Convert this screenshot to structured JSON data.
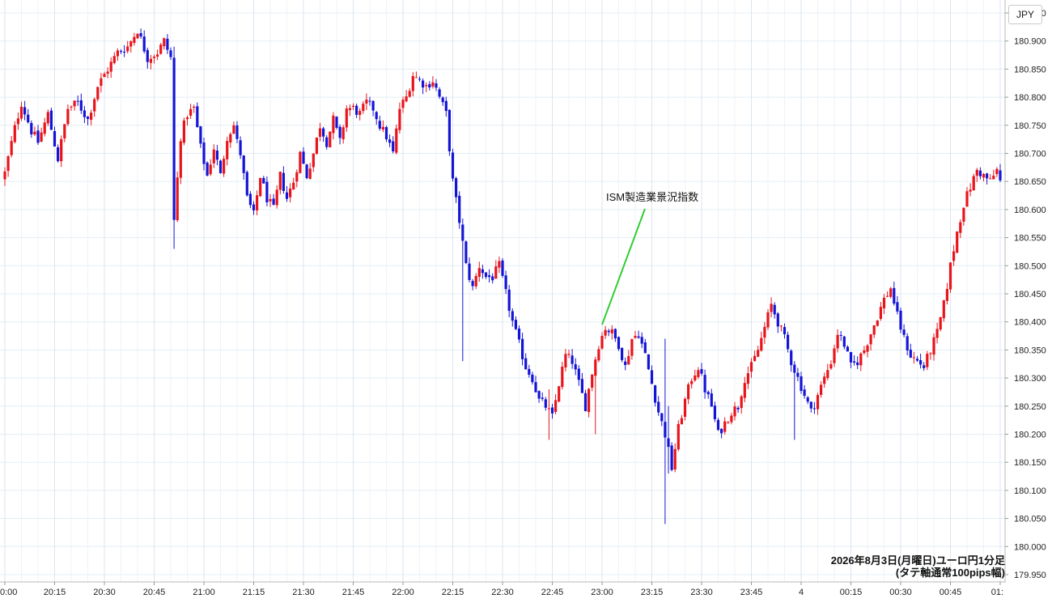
{
  "header": {
    "currency": "JPY"
  },
  "caption": {
    "line1": "2026年8月3日(月曜日)ユーロ円1分足",
    "line2": "(タテ軸通常100pips幅)"
  },
  "annotation": {
    "text": "ISM製造業景況指数",
    "time": "23:00",
    "price": 180.395
  },
  "chart_data": {
    "type": "candlestick",
    "interval": "1分足",
    "ylim": [
      179.95,
      180.95
    ],
    "y_ticks": [
      "180.950",
      "180.900",
      "180.850",
      "180.800",
      "180.750",
      "180.700",
      "180.650",
      "180.600",
      "180.550",
      "180.500",
      "180.450",
      "180.400",
      "180.350",
      "180.300",
      "180.250",
      "180.200",
      "180.150",
      "180.100",
      "180.050",
      "180.000",
      "179.950"
    ],
    "x_ticks": [
      {
        "t": 0,
        "label": "0:00"
      },
      {
        "t": 15,
        "label": "20:15"
      },
      {
        "t": 30,
        "label": "20:30"
      },
      {
        "t": 45,
        "label": "20:45"
      },
      {
        "t": 60,
        "label": "21:00"
      },
      {
        "t": 75,
        "label": "21:15"
      },
      {
        "t": 90,
        "label": "21:30"
      },
      {
        "t": 105,
        "label": "21:45"
      },
      {
        "t": 120,
        "label": "22:00"
      },
      {
        "t": 135,
        "label": "22:15"
      },
      {
        "t": 150,
        "label": "22:30"
      },
      {
        "t": 165,
        "label": "22:45"
      },
      {
        "t": 180,
        "label": "23:00"
      },
      {
        "t": 195,
        "label": "23:15"
      },
      {
        "t": 210,
        "label": "23:30"
      },
      {
        "t": 225,
        "label": "23:45"
      },
      {
        "t": 240,
        "label": "4"
      },
      {
        "t": 255,
        "label": "00:15"
      },
      {
        "t": 270,
        "label": "00:30"
      },
      {
        "t": 285,
        "label": "00:45"
      },
      {
        "t": 300,
        "label": "01:"
      }
    ],
    "colors": {
      "up": "#e8141c",
      "down": "#1414d6",
      "annotation_line": "#33cc33"
    },
    "close_path": [
      [
        0,
        180.665
      ],
      [
        3,
        180.745
      ],
      [
        5,
        180.79
      ],
      [
        8,
        180.74
      ],
      [
        10,
        180.72
      ],
      [
        13,
        180.77
      ],
      [
        16,
        180.69
      ],
      [
        19,
        180.78
      ],
      [
        22,
        180.79
      ],
      [
        25,
        180.76
      ],
      [
        28,
        180.82
      ],
      [
        31,
        180.85
      ],
      [
        34,
        180.88
      ],
      [
        37,
        180.89
      ],
      [
        40,
        180.92
      ],
      [
        43,
        180.87
      ],
      [
        46,
        180.88
      ],
      [
        48,
        180.9
      ],
      [
        50,
        180.87
      ],
      [
        51,
        180.58
      ],
      [
        53,
        180.73
      ],
      [
        55,
        180.77
      ],
      [
        57,
        180.78
      ],
      [
        59,
        180.71
      ],
      [
        61,
        180.66
      ],
      [
        63,
        180.71
      ],
      [
        65,
        180.66
      ],
      [
        67,
        180.73
      ],
      [
        69,
        180.75
      ],
      [
        70,
        180.72
      ],
      [
        71,
        180.7
      ],
      [
        73,
        180.62
      ],
      [
        75,
        180.59
      ],
      [
        77,
        180.66
      ],
      [
        79,
        180.62
      ],
      [
        81,
        180.6
      ],
      [
        83,
        180.66
      ],
      [
        85,
        180.62
      ],
      [
        87,
        180.65
      ],
      [
        89,
        180.7
      ],
      [
        91,
        180.66
      ],
      [
        93,
        180.7
      ],
      [
        95,
        180.75
      ],
      [
        97,
        180.72
      ],
      [
        99,
        180.76
      ],
      [
        101,
        180.72
      ],
      [
        103,
        180.78
      ],
      [
        105,
        180.78
      ],
      [
        107,
        180.77
      ],
      [
        109,
        180.79
      ],
      [
        111,
        180.78
      ],
      [
        113,
        180.75
      ],
      [
        115,
        180.73
      ],
      [
        117,
        180.7
      ],
      [
        119,
        180.78
      ],
      [
        121,
        180.8
      ],
      [
        123,
        180.84
      ],
      [
        125,
        180.83
      ],
      [
        127,
        180.82
      ],
      [
        129,
        180.83
      ],
      [
        131,
        180.8
      ],
      [
        133,
        180.77
      ],
      [
        135,
        180.65
      ],
      [
        137,
        180.58
      ],
      [
        139,
        180.5
      ],
      [
        141,
        180.46
      ],
      [
        143,
        180.5
      ],
      [
        145,
        180.48
      ],
      [
        147,
        180.48
      ],
      [
        149,
        180.5
      ],
      [
        151,
        180.45
      ],
      [
        153,
        180.4
      ],
      [
        155,
        180.36
      ],
      [
        157,
        180.32
      ],
      [
        159,
        180.3
      ],
      [
        161,
        180.26
      ],
      [
        163,
        180.25
      ],
      [
        165,
        180.23
      ],
      [
        167,
        180.29
      ],
      [
        169,
        180.34
      ],
      [
        171,
        180.33
      ],
      [
        173,
        180.29
      ],
      [
        175,
        180.25
      ],
      [
        177,
        180.31
      ],
      [
        179,
        180.36
      ],
      [
        181,
        180.39
      ],
      [
        183,
        180.38
      ],
      [
        185,
        180.36
      ],
      [
        187,
        180.32
      ],
      [
        189,
        180.37
      ],
      [
        191,
        180.38
      ],
      [
        193,
        180.34
      ],
      [
        195,
        180.29
      ],
      [
        197,
        180.24
      ],
      [
        199,
        180.2
      ],
      [
        201,
        180.14
      ],
      [
        203,
        180.21
      ],
      [
        205,
        180.26
      ],
      [
        207,
        180.3
      ],
      [
        209,
        180.32
      ],
      [
        211,
        180.28
      ],
      [
        213,
        180.25
      ],
      [
        215,
        180.2
      ],
      [
        217,
        180.22
      ],
      [
        219,
        180.24
      ],
      [
        221,
        180.25
      ],
      [
        223,
        180.3
      ],
      [
        225,
        180.32
      ],
      [
        227,
        180.35
      ],
      [
        229,
        180.39
      ],
      [
        231,
        180.43
      ],
      [
        233,
        180.4
      ],
      [
        235,
        180.37
      ],
      [
        237,
        180.33
      ],
      [
        239,
        180.3
      ],
      [
        241,
        180.27
      ],
      [
        243,
        180.24
      ],
      [
        245,
        180.27
      ],
      [
        247,
        180.3
      ],
      [
        249,
        180.33
      ],
      [
        251,
        180.38
      ],
      [
        253,
        180.36
      ],
      [
        255,
        180.32
      ],
      [
        257,
        180.33
      ],
      [
        259,
        180.35
      ],
      [
        261,
        180.38
      ],
      [
        263,
        180.41
      ],
      [
        265,
        180.44
      ],
      [
        267,
        180.46
      ],
      [
        269,
        180.41
      ],
      [
        271,
        180.37
      ],
      [
        273,
        180.34
      ],
      [
        275,
        180.33
      ],
      [
        277,
        180.32
      ],
      [
        279,
        180.35
      ],
      [
        281,
        180.38
      ],
      [
        283,
        180.43
      ],
      [
        285,
        180.5
      ],
      [
        287,
        180.56
      ],
      [
        289,
        180.61
      ],
      [
        291,
        180.64
      ],
      [
        293,
        180.67
      ],
      [
        295,
        180.66
      ],
      [
        297,
        180.65
      ],
      [
        299,
        180.67
      ],
      [
        300,
        180.65
      ]
    ],
    "spikes": [
      {
        "t": 51,
        "high": 180.89,
        "low": 180.53
      },
      {
        "t": 138,
        "high": 180.56,
        "low": 180.33
      },
      {
        "t": 164,
        "high": 180.28,
        "low": 180.19
      },
      {
        "t": 178,
        "high": 180.32,
        "low": 180.2
      },
      {
        "t": 199,
        "high": 180.37,
        "low": 180.04
      },
      {
        "t": 200,
        "high": 180.25,
        "low": 180.13
      },
      {
        "t": 238,
        "high": 180.33,
        "low": 180.19
      }
    ]
  }
}
